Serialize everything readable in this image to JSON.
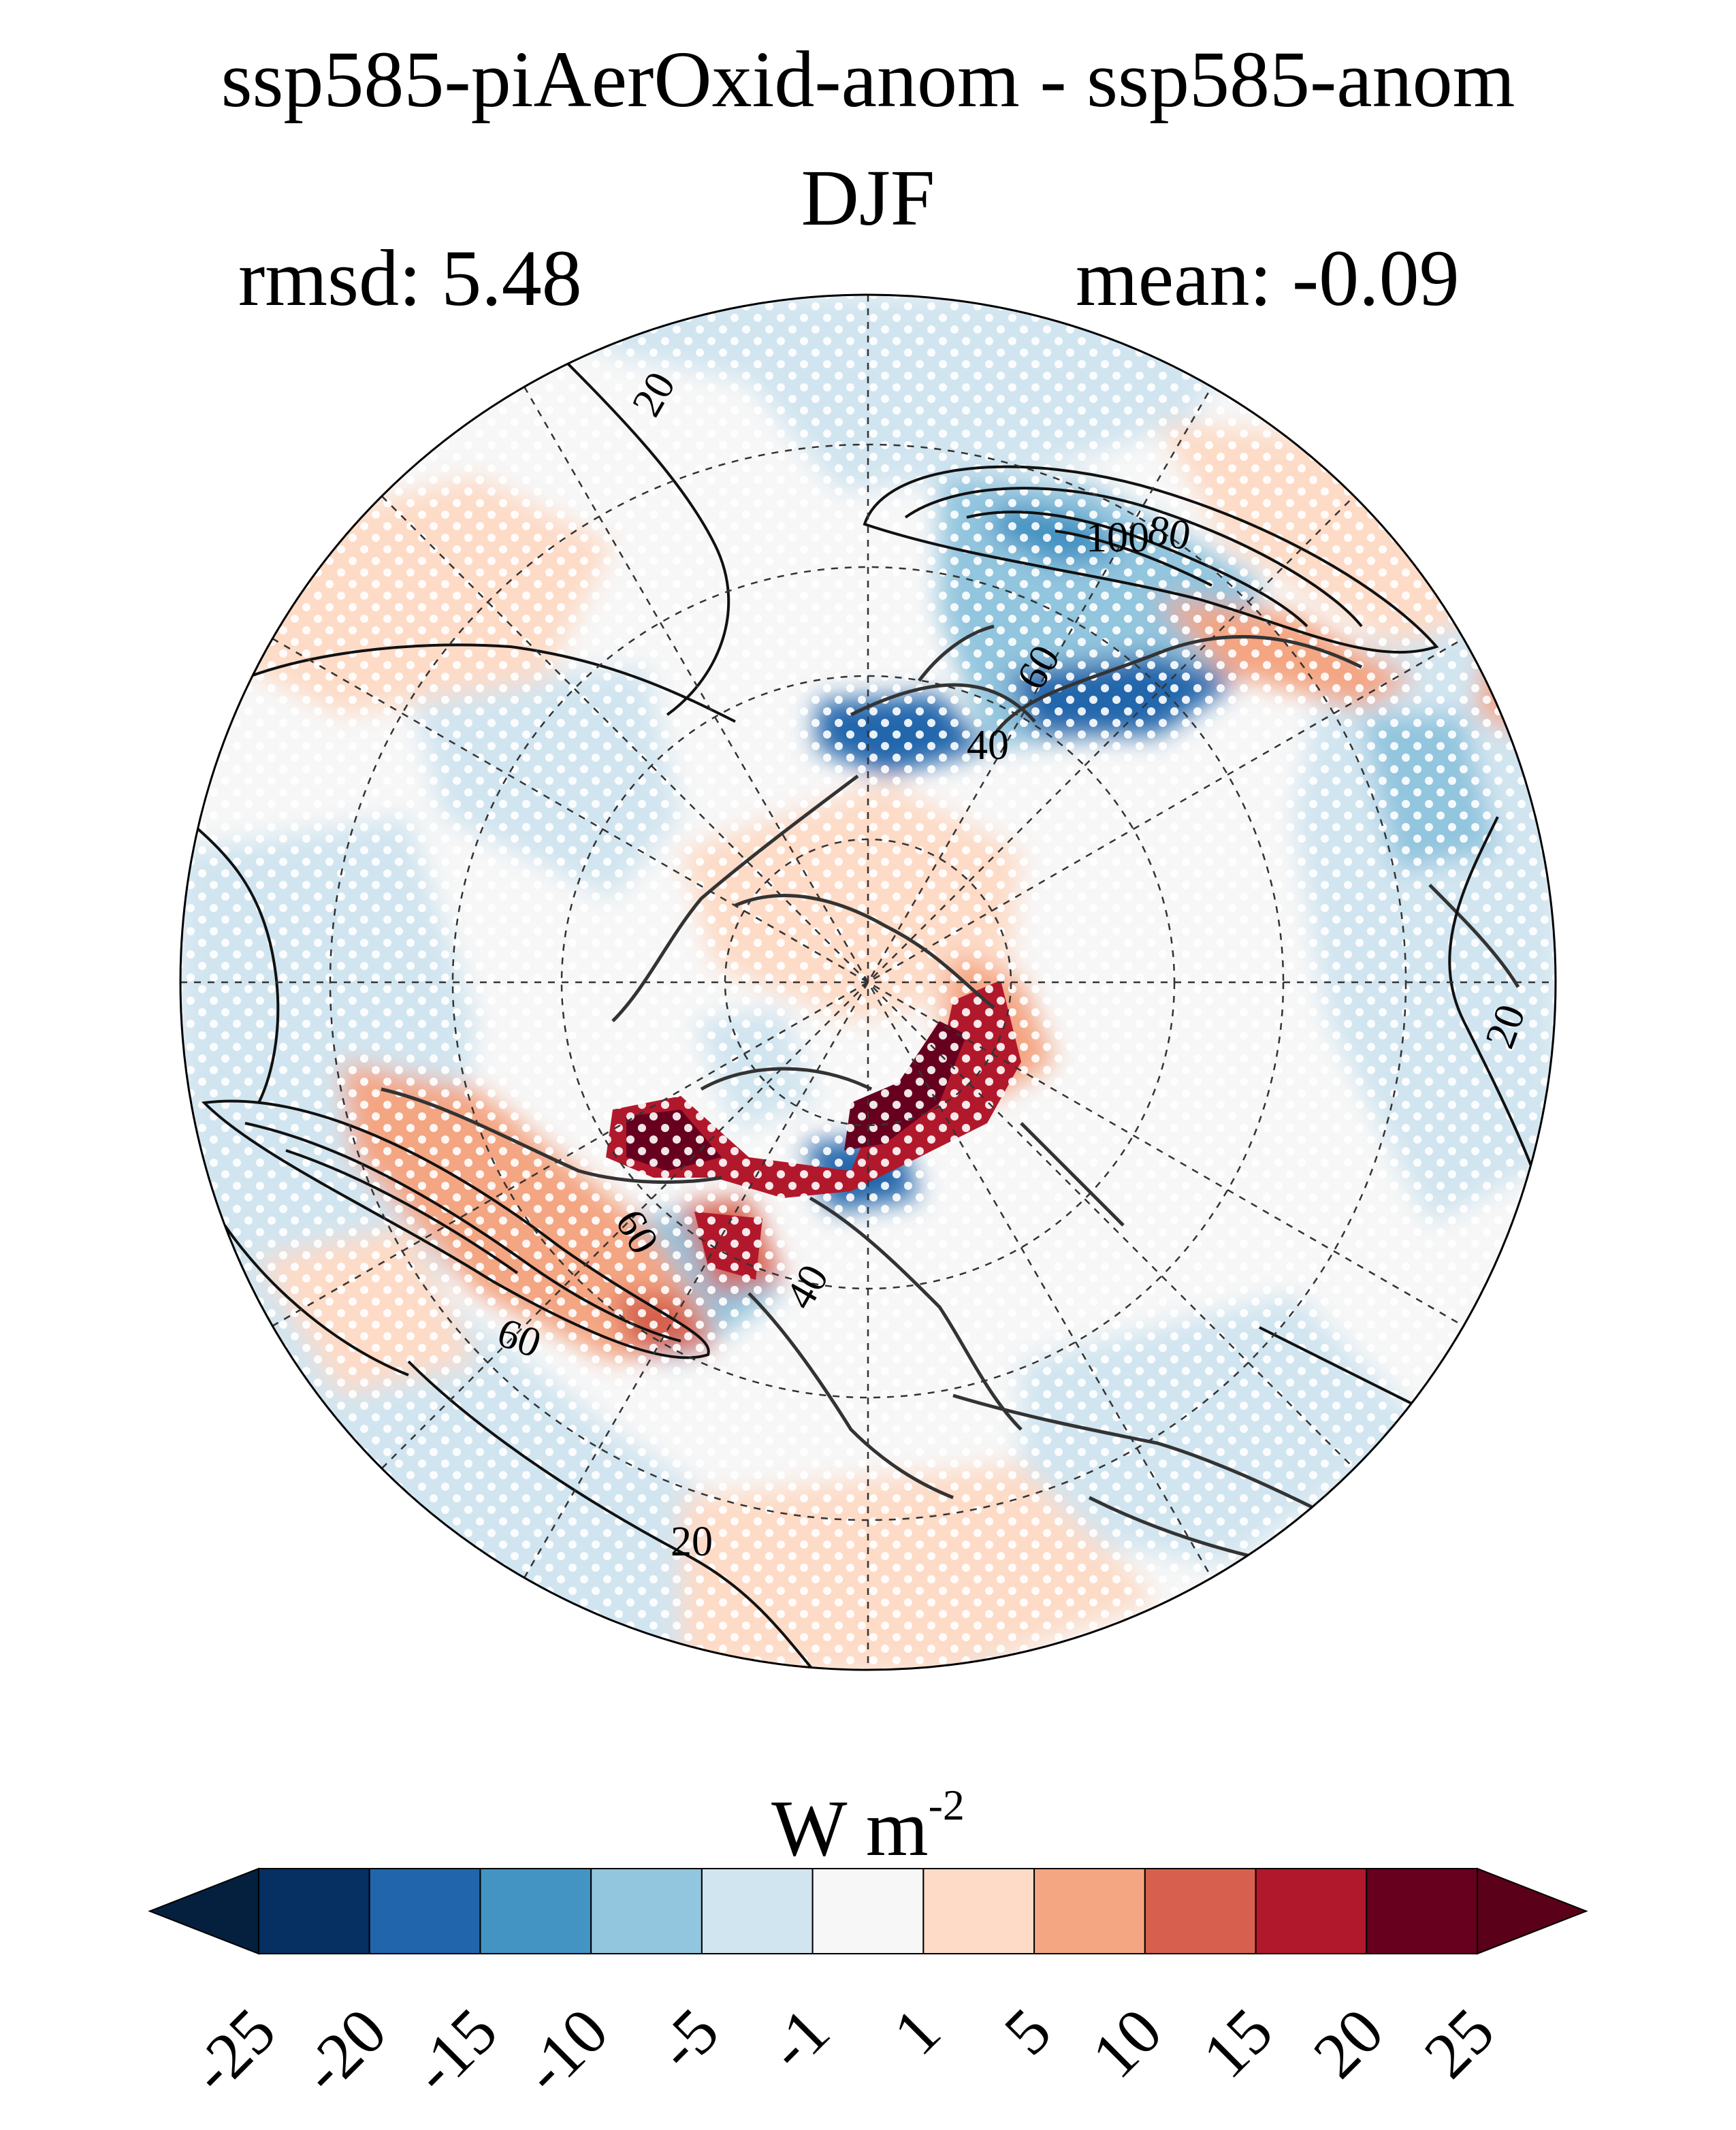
{
  "figure": {
    "title_line1": "ssp585-piAerOxid-anom - ssp585-anom",
    "title_line2": "DJF",
    "rmsd_text": "rmsd: 5.48",
    "mean_text": "mean: -0.09",
    "stats": {
      "rmsd": 5.48,
      "mean": -0.09
    },
    "projection": "north polar stereographic",
    "stippling": "white dots mark grid cells",
    "contour_labels": [
      "20",
      "20",
      "20",
      "40",
      "40",
      "60",
      "60",
      "60",
      "80",
      "100"
    ]
  },
  "colorbar": {
    "units_main": "W m",
    "units_exp": "-2",
    "extend": "both",
    "tick_labels": [
      "-25",
      "-20",
      "-15",
      "-10",
      "-5",
      "-1",
      "1",
      "5",
      "10",
      "15",
      "20",
      "25"
    ],
    "levels": [
      -25,
      -20,
      -15,
      -10,
      -5,
      -1,
      1,
      5,
      10,
      15,
      20,
      25
    ],
    "colors": [
      "#053061",
      "#2166ac",
      "#4393c3",
      "#92c5de",
      "#d1e5f0",
      "#f7f7f7",
      "#fddbc7",
      "#f4a582",
      "#d6604d",
      "#b2182b",
      "#67001f"
    ],
    "under_color": "#05203f",
    "over_color": "#5a0018"
  }
}
